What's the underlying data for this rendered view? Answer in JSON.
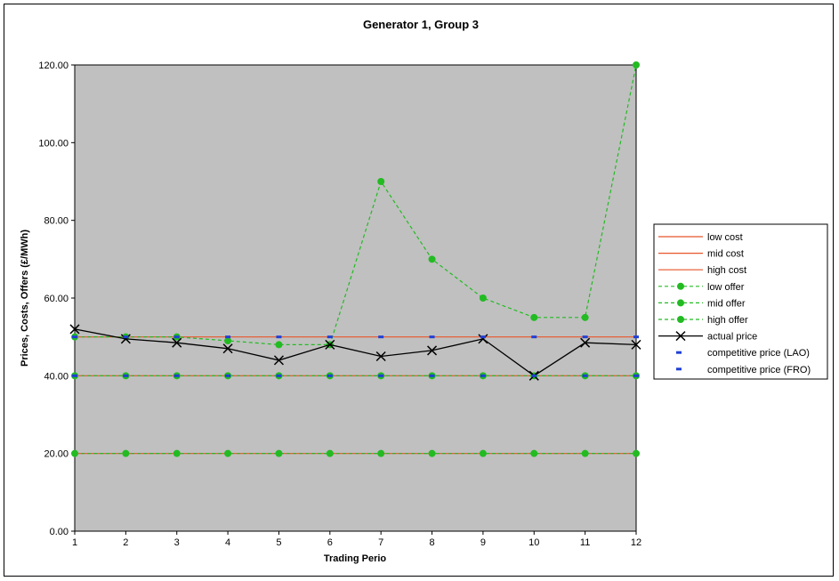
{
  "chart_data": {
    "type": "line",
    "title": "Generator 1, Group 3",
    "xlabel": "Trading  Perio",
    "ylabel": "Prices, Costs, Offers (£/MWh)",
    "x": [
      1,
      2,
      3,
      4,
      5,
      6,
      7,
      8,
      9,
      10,
      11,
      12
    ],
    "ylim": [
      0,
      120
    ],
    "yticks": [
      "0.00",
      "20.00",
      "40.00",
      "60.00",
      "80.00",
      "100.00",
      "120.00"
    ],
    "grid": false,
    "plot_background": "#c0c0c0",
    "legend_position": "right",
    "series": [
      {
        "name": "low  cost",
        "style": "line",
        "color": "#e8552a",
        "values": [
          20,
          20,
          20,
          20,
          20,
          20,
          20,
          20,
          20,
          20,
          20,
          20
        ]
      },
      {
        "name": "mid cost",
        "style": "line",
        "color": "#e8552a",
        "values": [
          40,
          40,
          40,
          40,
          40,
          40,
          40,
          40,
          40,
          40,
          40,
          40
        ]
      },
      {
        "name": "high cost",
        "style": "line",
        "color": "#e8552a",
        "values": [
          50,
          50,
          50,
          50,
          50,
          50,
          50,
          50,
          50,
          50,
          50,
          50
        ]
      },
      {
        "name": "low  offer",
        "style": "dashed-dot",
        "color": "#22bb22",
        "values": [
          20,
          20,
          20,
          20,
          20,
          20,
          20,
          20,
          20,
          20,
          20,
          20
        ]
      },
      {
        "name": "mid offer",
        "style": "dashed-dot",
        "color": "#22bb22",
        "values": [
          40,
          40,
          40,
          40,
          40,
          40,
          40,
          40,
          40,
          40,
          40,
          40
        ]
      },
      {
        "name": "high offer",
        "style": "dashed-dot",
        "color": "#22bb22",
        "values": [
          50,
          50,
          50,
          49,
          48,
          48,
          90,
          70,
          60,
          55,
          55,
          120
        ]
      },
      {
        "name": "actual price",
        "style": "line-x",
        "color": "#000000",
        "values": [
          52,
          49.5,
          48.5,
          47,
          44,
          48,
          45,
          46.5,
          49.5,
          40,
          48.5,
          48
        ]
      },
      {
        "name": "competitive price (LAO)",
        "style": "dash-marker",
        "color": "#1f3fd6",
        "values": [
          50,
          50,
          50,
          50,
          50,
          50,
          50,
          50,
          50,
          50,
          50,
          50
        ]
      },
      {
        "name": "competitive price (FRO)",
        "style": "dash-marker",
        "color": "#1f3fd6",
        "values": [
          40,
          40,
          40,
          40,
          40,
          40,
          40,
          40,
          40,
          40,
          40,
          40
        ]
      }
    ]
  }
}
